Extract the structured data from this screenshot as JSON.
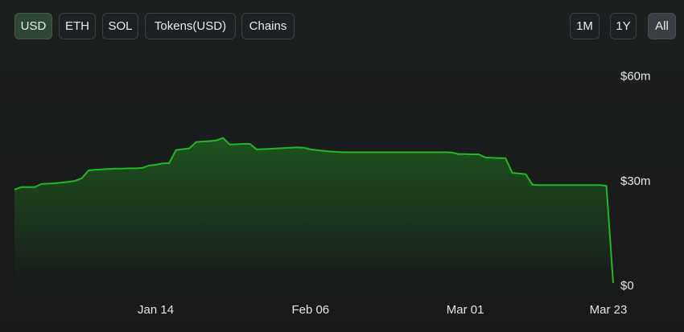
{
  "toggles": {
    "left": [
      "USD",
      "ETH",
      "SOL",
      "Tokens(USD)",
      "Chains"
    ],
    "right": [
      "1M",
      "1Y",
      "All"
    ]
  },
  "chart_data": {
    "type": "line",
    "color": "#22b822",
    "grid": false,
    "categories": [
      null,
      null,
      null,
      null,
      null,
      null,
      null,
      null,
      null,
      null,
      null,
      null,
      null,
      null,
      null,
      null,
      null,
      null,
      null,
      null,
      null,
      "Jan 14",
      null,
      null,
      null,
      null,
      null,
      null,
      null,
      null,
      null,
      null,
      null,
      null,
      null,
      null,
      null,
      null,
      null,
      null,
      null,
      null,
      null,
      null,
      "Feb 06",
      null,
      null,
      null,
      null,
      null,
      null,
      null,
      null,
      null,
      null,
      null,
      null,
      null,
      null,
      null,
      null,
      null,
      null,
      null,
      null,
      null,
      null,
      "Mar 01",
      null,
      null,
      null,
      null,
      null,
      null,
      null,
      null,
      null,
      null,
      null,
      null,
      null,
      null,
      null,
      null,
      null,
      null,
      null,
      null,
      null,
      "Mar 23"
    ],
    "values": [
      27.7,
      28.4,
      28.4,
      28.4,
      29.3,
      29.4,
      29.5,
      29.7,
      29.9,
      30.2,
      30.9,
      33.2,
      33.4,
      33.5,
      33.6,
      33.7,
      33.7,
      33.8,
      33.8,
      33.9,
      34.6,
      34.8,
      35.2,
      35.3,
      39.0,
      39.3,
      39.5,
      41.3,
      41.5,
      41.6,
      41.8,
      42.5,
      40.6,
      40.7,
      40.8,
      40.8,
      39.2,
      39.3,
      39.4,
      39.5,
      39.6,
      39.7,
      39.8,
      39.7,
      39.2,
      39.0,
      38.8,
      38.6,
      38.5,
      38.4,
      38.4,
      38.4,
      38.4,
      38.4,
      38.4,
      38.4,
      38.4,
      38.4,
      38.4,
      38.4,
      38.4,
      38.4,
      38.4,
      38.4,
      38.4,
      38.3,
      37.9,
      37.9,
      37.8,
      37.8,
      36.9,
      36.8,
      36.7,
      36.7,
      32.5,
      32.3,
      32.1,
      29.1,
      29.0,
      29.0,
      29.0,
      29.0,
      29.0,
      29.0,
      29.0,
      29.0,
      29.0,
      29.0,
      28.8,
      0.9
    ],
    "ylim": [
      0,
      65
    ],
    "yticks": [
      {
        "value": 0,
        "label": "$0"
      },
      {
        "value": 30,
        "label": "$30m"
      },
      {
        "value": 60,
        "label": "$60m"
      }
    ]
  }
}
